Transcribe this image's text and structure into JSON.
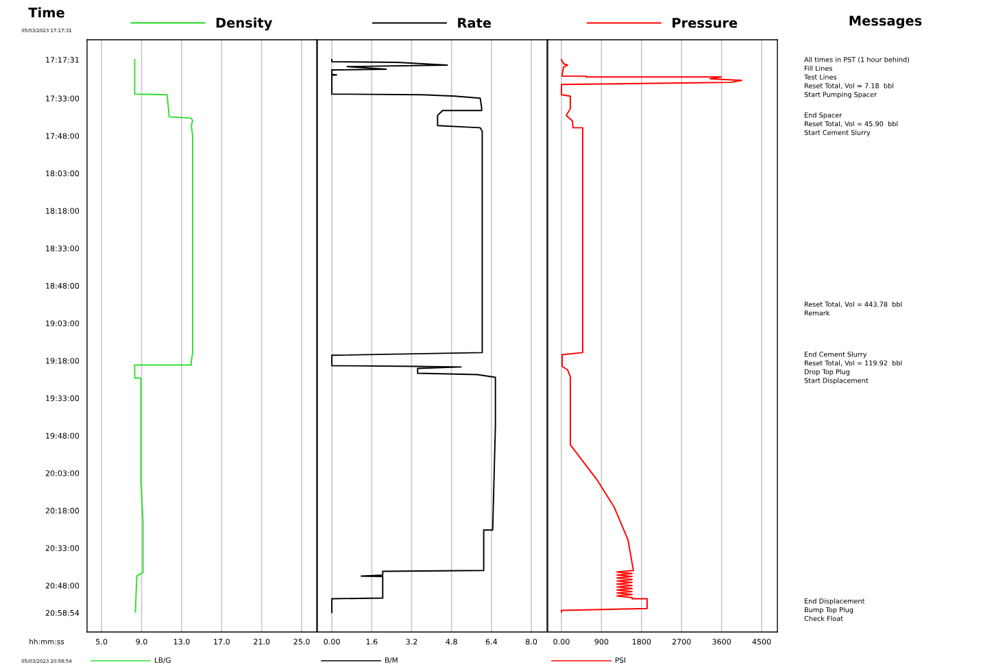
{
  "chart_data": [
    {
      "type": "line",
      "ylabel": "Time",
      "xlabel": "LB/G",
      "legend": "top",
      "grid": "x",
      "annotations": [
        "05/03/2023 17:17:31",
        "hh:mm:ss",
        "05/03/2023 20:58:54"
      ],
      "xlim": [
        3.55,
        26.5
      ],
      "xticks": [
        {
          "value": 5,
          "label": "5.0"
        },
        {
          "value": 9,
          "label": "9.0"
        },
        {
          "value": 13,
          "label": "13.0"
        },
        {
          "value": 17,
          "label": "17.0"
        },
        {
          "value": 21,
          "label": "21.0"
        },
        {
          "value": 25,
          "label": "25.0"
        }
      ],
      "ylim": [
        21.11,
        17.159
      ],
      "yticks": [
        {
          "value": 17.2919,
          "label": "17:17:31"
        },
        {
          "value": 17.55,
          "label": "17:33:00"
        },
        {
          "value": 17.8,
          "label": "17:48:00"
        },
        {
          "value": 18.05,
          "label": "18:03:00"
        },
        {
          "value": 18.3,
          "label": "18:18:00"
        },
        {
          "value": 18.55,
          "label": "18:33:00"
        },
        {
          "value": 18.8,
          "label": "18:48:00"
        },
        {
          "value": 19.05,
          "label": "19:03:00"
        },
        {
          "value": 19.3,
          "label": "19:18:00"
        },
        {
          "value": 19.55,
          "label": "19:33:00"
        },
        {
          "value": 19.8,
          "label": "19:48:00"
        },
        {
          "value": 20.05,
          "label": "20:03:00"
        },
        {
          "value": 20.3,
          "label": "20:18:00"
        },
        {
          "value": 20.55,
          "label": "20:33:00"
        },
        {
          "value": 20.8,
          "label": "20:48:00"
        },
        {
          "value": 20.9817,
          "label": "20:58:54"
        }
      ],
      "series": [
        {
          "name": "Density",
          "color": "#33dd33",
          "x": [
            8.31,
            8.31,
            11.55,
            11.76,
            13.97,
            14.1,
            13.97,
            14.1,
            14.1,
            13.97,
            13.97,
            8.31,
            8.31,
            8.93,
            8.93,
            9.14,
            9.14,
            8.52,
            8.38
          ],
          "values": [
            17.292,
            17.521,
            17.526,
            17.673,
            17.682,
            17.7,
            17.732,
            17.8,
            19.25,
            19.301,
            19.329,
            19.329,
            19.416,
            19.416,
            20.1,
            20.37,
            20.714,
            20.737,
            20.976
          ]
        }
      ]
    },
    {
      "type": "line",
      "xlabel": "B/M",
      "legend": "top",
      "grid": "x",
      "tick_labels": "x",
      "xlim": [
        -0.58,
        8.63
      ],
      "xticks": [
        {
          "value": 0,
          "label": "0.00"
        },
        1.6,
        3.2,
        4.8,
        6.4,
        {
          "value": 8,
          "label": "8.0"
        }
      ],
      "ylim": [
        21.11,
        17.159
      ],
      "series": [
        {
          "name": "Rate",
          "color": "#000000",
          "x": [
            0,
            0,
            2.64,
            4.63,
            0.61,
            2.18,
            0,
            0,
            0.19,
            0,
            0,
            3.64,
            4.93,
            5.95,
            6.01,
            6.01,
            4.44,
            4.24,
            4.24,
            5.95,
            6.03,
            6.03,
            0,
            0,
            3.39,
            5.18,
            3.44,
            3.44,
            5.84,
            6.56,
            6.56,
            6.45,
            6.09,
            6.09,
            2.04,
            2.04,
            1.18,
            2.04,
            2.04,
            0,
            0
          ],
          "values": [
            17.292,
            17.305,
            17.31,
            17.328,
            17.338,
            17.356,
            17.36,
            17.39,
            17.393,
            17.396,
            17.521,
            17.526,
            17.535,
            17.549,
            17.618,
            17.631,
            17.631,
            17.664,
            17.732,
            17.746,
            17.769,
            19.246,
            19.264,
            19.333,
            19.338,
            19.342,
            19.352,
            19.384,
            19.393,
            19.411,
            19.728,
            20.43,
            20.43,
            20.7,
            20.705,
            20.73,
            20.737,
            20.74,
            20.884,
            20.888,
            20.98
          ]
        }
      ]
    },
    {
      "type": "line",
      "xlabel": "PSI",
      "legend": "top",
      "grid": "x",
      "tick_labels": "x",
      "xlim": [
        -308,
        4854
      ],
      "xticks": [
        {
          "value": 0,
          "label": "0.00"
        },
        900,
        1800,
        2700,
        3600,
        4500
      ],
      "ylim": [
        21.11,
        17.159
      ],
      "series": [
        {
          "name": "Pressure",
          "color": "#ff0000",
          "x": [
            0,
            46,
            139,
            46,
            15,
            15,
            555,
            555,
            3590,
            3344,
            4053,
            3806,
            0,
            0,
            200,
            200,
            108,
            247,
            262,
            478,
            478,
            15,
            15,
            139,
            200,
            200,
            801,
            1187,
            1495,
            1618,
            1248,
            1587,
            1248,
            1587,
            1248,
            1587,
            1248,
            1587,
            1248,
            1587,
            1248,
            1587,
            1248,
            1587,
            1248,
            1587,
            1248,
            1587,
            1587,
            1926,
            1926,
            0,
            0
          ],
          "values": [
            17.292,
            17.319,
            17.328,
            17.342,
            17.393,
            17.402,
            17.402,
            17.407,
            17.407,
            17.42,
            17.43,
            17.443,
            17.457,
            17.526,
            17.535,
            17.618,
            17.664,
            17.7,
            17.746,
            17.746,
            19.246,
            19.26,
            19.338,
            19.361,
            19.407,
            19.861,
            20.095,
            20.278,
            20.494,
            20.7,
            20.71,
            20.72,
            20.73,
            20.74,
            20.75,
            20.76,
            20.77,
            20.78,
            20.79,
            20.8,
            20.81,
            20.82,
            20.83,
            20.84,
            20.85,
            20.86,
            20.87,
            20.88,
            20.888,
            20.888,
            20.953,
            20.966,
            20.976
          ]
        }
      ]
    },
    {
      "type": "other",
      "title": "Messages",
      "annotations": [
        "All times in PST (1 hour behind)\nFill Lines\nTest Lines\nReset Total, Vol = 7.18  bbl\nStart Pumping Spacer",
        "End Spacer\nReset Total, Vol = 45.90  bbl\nStart Cement Slurry",
        "Reset Total, Vol = 443.78  bbl\nRemark",
        "End Cement Slurry\nReset Total, Vol = 119.92  bbl\nDrop Top Plug\nStart Displacement",
        "End Displacement\nBump Top Plug\nCheck Float"
      ]
    }
  ]
}
